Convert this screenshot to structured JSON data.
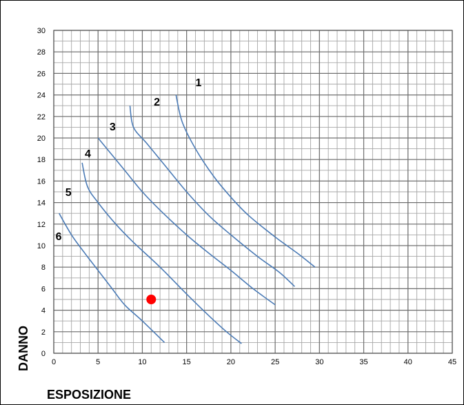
{
  "chart_data": {
    "type": "line",
    "title": "",
    "xlabel": "ESPOSIZIONE",
    "ylabel": "DANNO",
    "xlim": [
      0,
      45
    ],
    "ylim": [
      0,
      30
    ],
    "x_ticks": [
      0,
      5,
      10,
      15,
      20,
      25,
      30,
      35,
      40,
      45
    ],
    "y_ticks": [
      0,
      2,
      4,
      6,
      8,
      10,
      12,
      14,
      16,
      18,
      20,
      22,
      24,
      26,
      28,
      30
    ],
    "grid": true,
    "minor_grid": {
      "x_step": 1,
      "y_step": 1
    },
    "legend": "none",
    "line_color": "#4a7ab5",
    "marker_color": "#ff0000",
    "grid_color": "#a6a6a6",
    "series": [
      {
        "name": "1",
        "label_at": [
          16,
          24.8
        ],
        "points": [
          [
            13.8,
            24
          ],
          [
            14.5,
            21.5
          ],
          [
            16,
            19
          ],
          [
            18,
            16.5
          ],
          [
            20,
            14.5
          ],
          [
            22,
            12.8
          ],
          [
            25,
            10.8
          ],
          [
            27.5,
            9.3
          ],
          [
            29.5,
            8
          ]
        ]
      },
      {
        "name": "2",
        "label_at": [
          11.3,
          23
        ],
        "points": [
          [
            8.6,
            23
          ],
          [
            9,
            21
          ],
          [
            10.5,
            19.5
          ],
          [
            12.5,
            17.5
          ],
          [
            15,
            15
          ],
          [
            17.5,
            12.8
          ],
          [
            20,
            11
          ],
          [
            23,
            9
          ],
          [
            25.5,
            7.5
          ],
          [
            27.2,
            6.2
          ]
        ]
      },
      {
        "name": "3",
        "label_at": [
          6.3,
          20.7
        ],
        "points": [
          [
            5,
            20
          ],
          [
            6.5,
            18.5
          ],
          [
            8,
            17
          ],
          [
            10,
            15
          ],
          [
            12,
            13.3
          ],
          [
            15,
            11
          ],
          [
            17.5,
            9.3
          ],
          [
            20,
            7.7
          ],
          [
            22.5,
            6
          ],
          [
            25,
            4.5
          ]
        ]
      },
      {
        "name": "4",
        "label_at": [
          3.5,
          18.2
        ],
        "points": [
          [
            3.2,
            17.7
          ],
          [
            3.8,
            15.5
          ],
          [
            5,
            14
          ],
          [
            7,
            12
          ],
          [
            9,
            10.3
          ],
          [
            12,
            8
          ],
          [
            15,
            5.5
          ],
          [
            17.5,
            3.5
          ],
          [
            19.5,
            2
          ],
          [
            21.2,
            0.9
          ]
        ]
      },
      {
        "name": "5",
        "label_at": [
          1.3,
          14.6
        ],
        "points": [
          [
            0.6,
            13
          ],
          [
            2,
            11
          ],
          [
            3.5,
            9.3
          ],
          [
            5,
            7.7
          ],
          [
            6.5,
            6.1
          ],
          [
            8,
            4.5
          ],
          [
            10,
            3
          ],
          [
            12.5,
            1
          ]
        ]
      },
      {
        "name": "6",
        "label_at": [
          0.2,
          10.5
        ],
        "points": []
      }
    ],
    "markers": [
      {
        "x": 11,
        "y": 5
      }
    ]
  }
}
